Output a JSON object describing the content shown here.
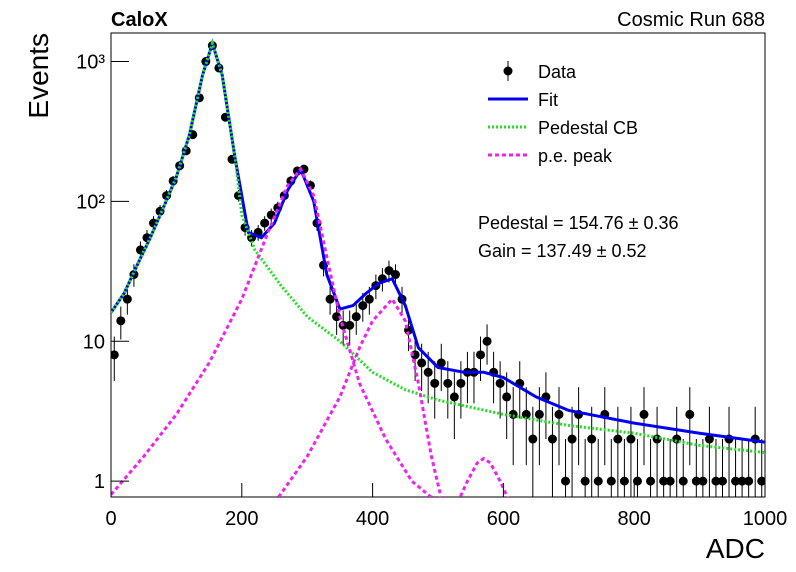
{
  "chart_data": {
    "type": "scatter",
    "title": "CaloX",
    "subtitle": "Cosmic Run 688",
    "xlabel": "ADC",
    "ylabel": "Events",
    "annotations": [
      "Pedestal = 154.76 ± 0.36",
      "Gain = 137.49 ± 0.52"
    ],
    "log_y": true,
    "legend": "upper right",
    "xlim": [
      0,
      1000
    ],
    "xticks": [
      0,
      200,
      400,
      600,
      800,
      1000
    ],
    "ylim": [
      0.77,
      1600
    ],
    "yticks": [
      1,
      10,
      {
        "value": 100,
        "label": "10²"
      },
      {
        "value": 1000,
        "label": "10³"
      }
    ],
    "points": {
      "name": "Data",
      "color": "#000000",
      "x": [
        5,
        15,
        25,
        35,
        45,
        55,
        65,
        75,
        85,
        95,
        105,
        115,
        125,
        135,
        145,
        155,
        165,
        175,
        185,
        195,
        205,
        215,
        225,
        235,
        245,
        255,
        265,
        275,
        285,
        295,
        305,
        315,
        325,
        335,
        345,
        355,
        365,
        375,
        385,
        395,
        405,
        415,
        425,
        435,
        445,
        455,
        465,
        475,
        485,
        495,
        505,
        515,
        525,
        535,
        545,
        555,
        565,
        575,
        585,
        595,
        605,
        615,
        625,
        635,
        645,
        655,
        665,
        675,
        685,
        695,
        705,
        715,
        725,
        735,
        745,
        755,
        765,
        775,
        785,
        795,
        805,
        815,
        825,
        835,
        845,
        855,
        865,
        875,
        885,
        895,
        905,
        915,
        925,
        935,
        945,
        955,
        965,
        975,
        985,
        995
      ],
      "values": [
        8,
        14,
        20,
        30,
        45,
        55,
        70,
        85,
        110,
        140,
        180,
        230,
        300,
        550,
        1000,
        1300,
        900,
        400,
        200,
        110,
        65,
        55,
        60,
        70,
        80,
        90,
        110,
        140,
        165,
        170,
        130,
        70,
        35,
        20,
        15,
        13,
        13,
        15,
        18,
        20,
        25,
        28,
        32,
        30,
        20,
        12,
        8,
        7,
        6,
        5,
        7,
        5,
        4,
        5,
        6,
        6,
        8,
        10,
        6,
        5,
        4,
        3,
        5,
        3,
        2,
        3,
        4,
        2,
        3,
        1,
        2,
        3,
        1,
        2,
        1,
        3,
        1,
        2,
        1,
        2,
        1,
        3,
        1,
        2,
        1,
        1,
        2,
        1,
        3,
        1,
        1,
        2,
        1,
        1,
        2,
        1,
        1,
        1,
        2,
        1
      ],
      "errors": [
        2.8,
        3.7,
        4.5,
        5.5,
        6.7,
        7.4,
        8.4,
        9.2,
        10.5,
        11.8,
        13.4,
        15.2,
        17.3,
        23.5,
        31.6,
        36.1,
        30,
        20,
        14.1,
        10.5,
        8.1,
        7.4,
        7.7,
        8.4,
        8.9,
        9.5,
        10.5,
        11.8,
        12.8,
        13,
        11.4,
        8.4,
        5.9,
        4.5,
        3.9,
        3.6,
        3.6,
        3.9,
        4.2,
        4.5,
        5,
        5.3,
        5.7,
        5.5,
        4.5,
        3.5,
        2.8,
        2.6,
        2.4,
        2.2,
        2.6,
        2.2,
        2,
        2.2,
        2.4,
        2.4,
        2.8,
        3.2,
        2.4,
        2.2,
        2,
        1.7,
        2.2,
        1.7,
        1.4,
        1.7,
        2,
        1.4,
        1.7,
        1,
        1.4,
        1.7,
        1,
        1.4,
        1,
        1.7,
        1,
        1.4,
        1,
        1.4,
        1,
        1.7,
        1,
        1.4,
        1,
        1,
        1.4,
        1,
        1.7,
        1,
        1,
        1.4,
        1,
        1,
        1.4,
        1,
        1,
        1,
        1.4,
        1
      ]
    },
    "series": [
      {
        "name": "Fit",
        "color": "#0000ee",
        "style": "solid",
        "x": [
          0,
          20,
          40,
          60,
          80,
          100,
          120,
          140,
          155,
          170,
          190,
          210,
          230,
          250,
          270,
          290,
          310,
          330,
          350,
          370,
          390,
          410,
          430,
          450,
          470,
          500,
          540,
          570,
          600,
          650,
          700,
          800,
          900,
          1000
        ],
        "values": [
          16,
          22,
          35,
          55,
          90,
          150,
          300,
          800,
          1350,
          800,
          200,
          60,
          55,
          70,
          120,
          170,
          100,
          30,
          17,
          18,
          22,
          26,
          28,
          18,
          9,
          6.5,
          6,
          6,
          5.5,
          4,
          3.2,
          2.6,
          2.2,
          1.9
        ]
      },
      {
        "name": "Pedestal CB",
        "color": "#22dd22",
        "style": "dotted",
        "x": [
          0,
          20,
          40,
          60,
          80,
          100,
          120,
          140,
          155,
          170,
          190,
          200,
          220,
          260,
          300,
          350,
          400,
          450,
          500,
          600,
          700,
          800,
          900,
          1000
        ],
        "values": [
          16,
          22,
          35,
          55,
          90,
          150,
          300,
          800,
          1350,
          800,
          200,
          80,
          45,
          25,
          15,
          10,
          6,
          4.5,
          3.8,
          3,
          2.5,
          2.2,
          1.8,
          1.6
        ]
      },
      {
        "name": "p.e. peak",
        "color": "#ee22ee",
        "style": "dashed",
        "x": [
          0,
          50,
          100,
          150,
          200,
          240,
          270,
          290,
          310,
          330,
          350,
          380,
          420,
          460,
          500,
          505,
          250,
          300,
          350,
          380,
          400,
          430,
          450,
          470,
          490,
          510,
          515,
          530,
          545,
          560,
          570,
          580,
          595,
          610
        ],
        "values": [
          0.8,
          1.5,
          3,
          7,
          20,
          60,
          130,
          170,
          110,
          40,
          15,
          5,
          2,
          1,
          0.7,
          null,
          0.7,
          1.5,
          4,
          9,
          14,
          20,
          14,
          5,
          1.5,
          0.6,
          null,
          0.7,
          1,
          1.35,
          1.45,
          1.35,
          1,
          0.7
        ]
      }
    ]
  }
}
